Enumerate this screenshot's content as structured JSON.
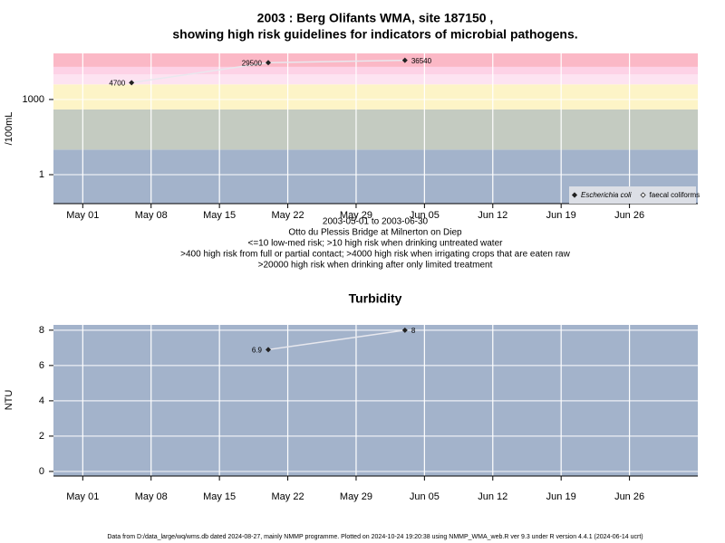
{
  "chart_data": [
    {
      "type": "scatter",
      "title": "2003 : Berg Olifants WMA, site 187150 ,",
      "subtitle": "showing high risk guidelines for indicators of microbial pathogens.",
      "y_label": "/100mL",
      "log_y": true,
      "x": [
        "2003-05-06",
        "2003-05-20",
        "2003-06-03"
      ],
      "series": [
        {
          "name": "Escherichia coli",
          "color": "#222222",
          "values": [
            4700,
            29500,
            36540
          ]
        },
        {
          "name": "faecal coliforms",
          "color": "#222222",
          "values": [
            null,
            null,
            null
          ]
        }
      ],
      "line_color": "#e8e8ee",
      "xlim": [
        "2003-04-28",
        "2003-07-03"
      ],
      "xticks": [
        {
          "value": "2003-05-01",
          "label": "May 01"
        },
        {
          "value": "2003-05-08",
          "label": "May 08"
        },
        {
          "value": "2003-05-15",
          "label": "May 15"
        },
        {
          "value": "2003-05-22",
          "label": "May 22"
        },
        {
          "value": "2003-05-29",
          "label": "May 29"
        },
        {
          "value": "2003-06-05",
          "label": "Jun 05"
        },
        {
          "value": "2003-06-12",
          "label": "Jun 12"
        },
        {
          "value": "2003-06-19",
          "label": "Jun 19"
        },
        {
          "value": "2003-06-26",
          "label": "Jun 26"
        }
      ],
      "ylim": [
        0.07,
        69000
      ],
      "yticks": [
        1,
        1000
      ],
      "grid": true,
      "legend": "bottom-right",
      "bands": [
        {
          "lower": 0.07,
          "upper": 10,
          "color": "#a3b3cb"
        },
        {
          "lower": 10,
          "upper": 400,
          "color": "#c4cbc1"
        },
        {
          "lower": 400,
          "upper": 4000,
          "color": "#fdf4c7"
        },
        {
          "lower": 4000,
          "upper": 10000,
          "color": "#fde3f1"
        },
        {
          "lower": 10000,
          "upper": 20000,
          "color": "#fdd2e6"
        },
        {
          "lower": 20000,
          "upper": 69000,
          "color": "#fbb8c6"
        }
      ],
      "notes": [
        "2003-05-01 to 2003-06-30",
        "Otto du Plessis Bridge at Milnerton on Diep",
        "<=10 low-med risk; >10 high risk when drinking untreated water",
        ">400 high risk from full or partial contact; >4000 high risk when irrigating crops that are eaten raw",
        ">20000 high risk when drinking after only limited treatment"
      ]
    },
    {
      "type": "scatter",
      "title": "Turbidity",
      "y_label": "NTU",
      "log_y": false,
      "x": [
        "2003-05-20",
        "2003-06-03"
      ],
      "series": [
        {
          "color": "#222222",
          "values": [
            6.9,
            8
          ]
        }
      ],
      "line_color": "#e8e8ee",
      "xlim": [
        "2003-04-28",
        "2003-07-03"
      ],
      "xticks": [
        {
          "value": "2003-05-01",
          "label": "May 01"
        },
        {
          "value": "2003-05-08",
          "label": "May 08"
        },
        {
          "value": "2003-05-15",
          "label": "May 15"
        },
        {
          "value": "2003-05-22",
          "label": "May 22"
        },
        {
          "value": "2003-05-29",
          "label": "May 29"
        },
        {
          "value": "2003-06-05",
          "label": "Jun 05"
        },
        {
          "value": "2003-06-12",
          "label": "Jun 12"
        },
        {
          "value": "2003-06-19",
          "label": "Jun 19"
        },
        {
          "value": "2003-06-26",
          "label": "Jun 26"
        }
      ],
      "ylim": [
        -0.26,
        8.3
      ],
      "yticks": [
        0,
        2,
        4,
        6,
        8
      ],
      "grid": true,
      "bands": [
        {
          "lower": -0.26,
          "upper": 8.3,
          "color": "#a3b3cb"
        }
      ]
    }
  ],
  "footer": "Data from D:/data_large/wq/wms.db dated 2024-08-27, mainly NMMP programme. Plotted on 2024-10-24 19:20:38 using NMMP_WMA_web.R ver 9.3 under R version 4.4.1 (2024-06-14 ucrt)"
}
